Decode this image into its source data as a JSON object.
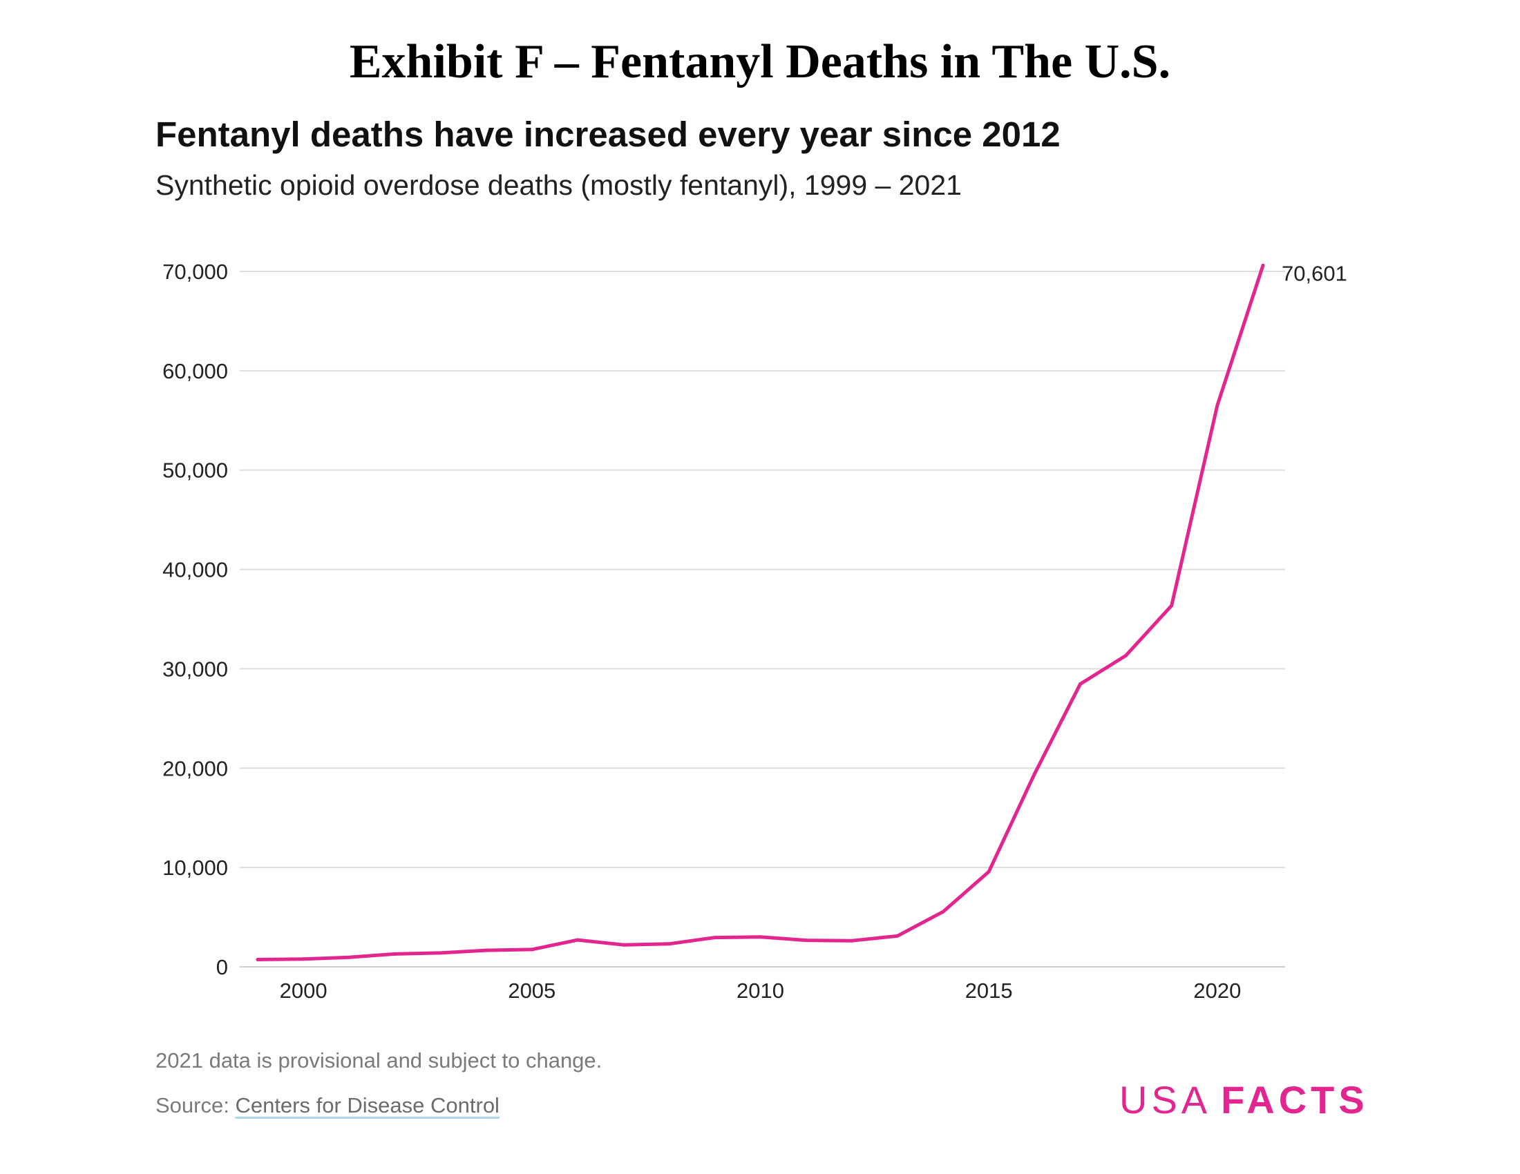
{
  "exhibit_title": "Exhibit F – Fentanyl Deaths in The U.S.",
  "footer": {
    "note": "2021 data is provisional and subject to change.",
    "source_prefix": "Source: ",
    "source_link": "Centers for Disease Control"
  },
  "logo": {
    "part1": "USA",
    "part2": "FACTS"
  },
  "colors": {
    "line": "#e3258f",
    "grid": "#dddddd",
    "text": "#222222",
    "logo": "#e3258f"
  },
  "chart_data": {
    "type": "line",
    "title": "Fentanyl deaths have increased every year since 2012",
    "subtitle": "Synthetic opioid overdose deaths (mostly fentanyl), 1999 – 2021",
    "xlabel": "",
    "ylabel": "",
    "x": [
      1999,
      2000,
      2001,
      2002,
      2003,
      2004,
      2005,
      2006,
      2007,
      2008,
      2009,
      2010,
      2011,
      2012,
      2013,
      2014,
      2015,
      2016,
      2017,
      2018,
      2019,
      2020,
      2021
    ],
    "series": [
      {
        "values": [
          730,
          782,
          957,
          1295,
          1400,
          1664,
          1742,
          2707,
          2213,
          2306,
          2946,
          3007,
          2666,
          2628,
          3105,
          5544,
          9580,
          19413,
          28466,
          31335,
          36359,
          56516,
          70601
        ]
      }
    ],
    "xlim": [
      1999,
      2021
    ],
    "ylim": [
      0,
      70000
    ],
    "xticks": [
      2000,
      2005,
      2010,
      2015,
      2020
    ],
    "xtick_labels": [
      "2000",
      "2005",
      "2010",
      "2015",
      "2020"
    ],
    "yticks": [
      0,
      10000,
      20000,
      30000,
      40000,
      50000,
      60000,
      70000
    ],
    "ytick_labels": [
      "0",
      "10,000",
      "20,000",
      "30,000",
      "40,000",
      "50,000",
      "60,000",
      "70,000"
    ],
    "grid": true,
    "end_label": "70,601"
  }
}
